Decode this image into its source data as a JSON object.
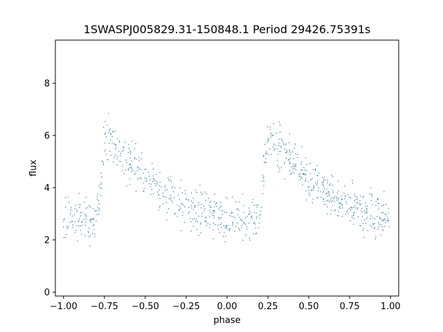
{
  "chart_data": {
    "type": "scatter",
    "title": "1SWASPJ005829.31-150848.1 Period 29426.75391s",
    "xlabel": "phase",
    "ylabel": "flux",
    "xlim": [
      -1.05,
      1.05
    ],
    "ylim": [
      -0.15,
      9.65
    ],
    "x_ticks": [
      -1.0,
      -0.75,
      -0.5,
      -0.25,
      0.0,
      0.25,
      0.5,
      0.75,
      1.0
    ],
    "x_tick_labels": [
      "−1.00",
      "−0.75",
      "−0.50",
      "−0.25",
      "0.00",
      "0.25",
      "0.50",
      "0.75",
      "1.00"
    ],
    "y_ticks": [
      0,
      2,
      4,
      6,
      8
    ],
    "y_tick_labels": [
      "0",
      "2",
      "4",
      "6",
      "8"
    ],
    "grid": false,
    "legend": "none",
    "marker_color": "#1f77b4",
    "description_points": {
      "x": [
        -1.0,
        -0.9,
        -0.8,
        -0.75,
        -0.7,
        -0.6,
        -0.5,
        -0.4,
        -0.3,
        -0.2,
        -0.1,
        0.0,
        0.1,
        0.2,
        0.25,
        0.3,
        0.4,
        0.5,
        0.6,
        0.7,
        0.8,
        0.9,
        1.0
      ],
      "y": [
        2.85,
        2.8,
        2.8,
        5.9,
        5.7,
        5.0,
        4.3,
        3.8,
        3.4,
        3.15,
        3.0,
        2.9,
        2.8,
        2.8,
        5.9,
        5.7,
        5.0,
        4.3,
        3.8,
        3.4,
        3.15,
        3.0,
        2.9
      ]
    }
  }
}
